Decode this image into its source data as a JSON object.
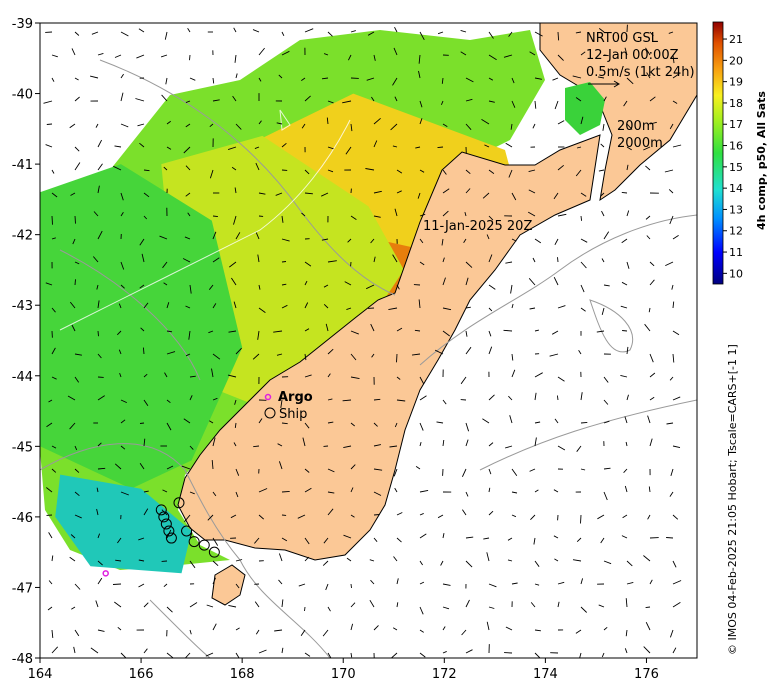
{
  "map": {
    "lon_range": [
      164,
      177
    ],
    "lat_range": [
      -48,
      -39
    ],
    "x_ticks": [
      164,
      166,
      168,
      170,
      172,
      174,
      176
    ],
    "y_ticks": [
      -39,
      -40,
      -41,
      -42,
      -43,
      -44,
      -45,
      -46,
      -47,
      -48
    ],
    "x_tick_labels": [
      "164",
      "166",
      "168",
      "170",
      "172",
      "174",
      "176"
    ],
    "y_tick_labels": [
      "-39",
      "-40",
      "-41",
      "-42",
      "-43",
      "-44",
      "-45",
      "-46",
      "-47",
      "-48"
    ]
  },
  "annotations": {
    "product_title": "NRT00 GSL",
    "product_time": "12-Jan 00:00Z",
    "vector_scale": "0.5m/s (1kt 24h)",
    "contour_200": "200m",
    "contour_2000": "2000m",
    "image_time": "11-Jan-2025 20Z",
    "argo_label": "Argo",
    "ship_label": "Ship"
  },
  "colorbar": {
    "title": "4h comp, p50, All Sats",
    "min": 9.5,
    "max": 21.8,
    "ticks": [
      "10",
      "11",
      "12",
      "13",
      "14",
      "15",
      "16",
      "17",
      "18",
      "19",
      "20",
      "21"
    ]
  },
  "credit": "© IMOS 04-Feb-2025 21:05 Hobart; Tscale=CARS+[-1 1]",
  "colors": {
    "land": "#fbc896",
    "coast": "#000000",
    "contour": "#9a9a9a",
    "argo": "#e020e0",
    "sst_warm": "#e07a08",
    "sst_mid": "#e8e020",
    "sst_cool": "#20c040",
    "sst_cold": "#30b8a8"
  },
  "sst_patches": [
    {
      "name": "warm-east",
      "lon": [
        169.8,
        172.6,
        172.9,
        171.8,
        170.4,
        169.4
      ],
      "lat": [
        -42.2,
        -41.3,
        -41.1,
        -42.3,
        -43.4,
        -43.6
      ],
      "temp": 20.2
    },
    {
      "name": "north-warm",
      "lon": [
        168.2,
        170.2,
        173.2,
        173.5,
        171.5,
        169.0
      ],
      "lat": [
        -40.7,
        -40.0,
        -40.8,
        -41.6,
        -42.2,
        -41.8
      ],
      "temp": 18.6
    },
    {
      "name": "central-yellow",
      "lon": [
        166.4,
        168.4,
        170.5,
        171.2,
        170.0,
        168.2,
        166.8
      ],
      "lat": [
        -41.0,
        -40.6,
        -41.6,
        -42.5,
        -43.8,
        -44.4,
        -44.0
      ],
      "temp": 17.6
    },
    {
      "name": "west-green",
      "lon": [
        164.0,
        165.6,
        167.4,
        168.0,
        167.0,
        165.8,
        164.0
      ],
      "lat": [
        -41.4,
        -41.0,
        -41.8,
        -43.6,
        -45.2,
        -45.6,
        -45.0
      ],
      "temp": 15.8
    },
    {
      "name": "southwest-teal",
      "lon": [
        164.4,
        166.0,
        167.0,
        166.8,
        165.0,
        164.3
      ],
      "lat": [
        -45.4,
        -45.6,
        -46.2,
        -46.8,
        -46.7,
        -46.0
      ],
      "temp": 13.8
    }
  ],
  "argo_floats": [
    {
      "lon": 165.3,
      "lat": -46.8
    }
  ],
  "ship_track": [
    {
      "lon": 166.4,
      "lat": -45.9
    },
    {
      "lon": 166.45,
      "lat": -46.0
    },
    {
      "lon": 166.5,
      "lat": -46.1
    },
    {
      "lon": 166.55,
      "lat": -46.2
    },
    {
      "lon": 166.6,
      "lat": -46.3
    },
    {
      "lon": 166.75,
      "lat": -45.8
    },
    {
      "lon": 166.9,
      "lat": -46.2
    },
    {
      "lon": 167.05,
      "lat": -46.35
    },
    {
      "lon": 167.25,
      "lat": -46.4
    },
    {
      "lon": 167.45,
      "lat": -46.5
    }
  ]
}
